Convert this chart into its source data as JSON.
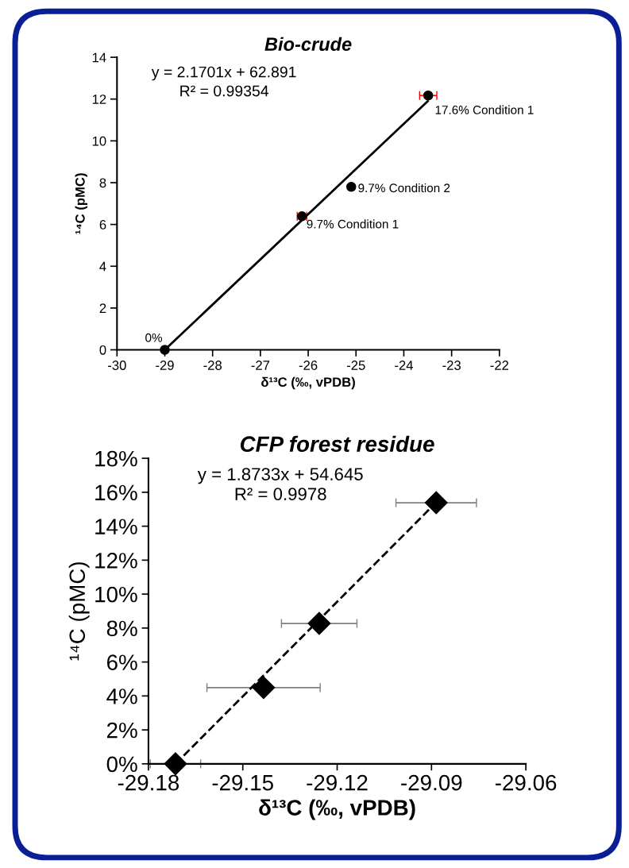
{
  "chart_data": [
    {
      "type": "scatter",
      "title": "Bio-crude",
      "xlabel": "δ¹³C (‰, vPDB)",
      "ylabel": "¹⁴C (pMC)",
      "x": [
        -29.0,
        -26.13,
        -25.1,
        -23.49
      ],
      "series": [
        {
          "color": "#000000",
          "marker": "circle",
          "values": [
            0,
            6.39,
            7.8,
            12.17
          ],
          "xerrors": [
            null,
            0.1,
            null,
            0.18
          ]
        },
        {
          "type": "line",
          "color": "#000000",
          "marker": "none",
          "line_style": "solid",
          "x": [
            -29.0,
            -23.5
          ],
          "values": [
            0,
            11.9
          ]
        }
      ],
      "annotations": [
        "y = 2.1701x + 62.891",
        "R² = 0.99354",
        {
          "text": "0%",
          "x": -29.0,
          "y": 0
        },
        {
          "text": "9.7% Condition 1",
          "x": -26.13,
          "y": 6.39
        },
        {
          "text": "9.7% Condition 2",
          "x": -25.1,
          "y": 7.8
        },
        {
          "text": "17.6% Condition 1",
          "x": -23.49,
          "y": 12.17
        }
      ],
      "xlim": [
        -30,
        -22
      ],
      "xticks": [
        -30,
        -29,
        -28,
        -27,
        -26,
        -25,
        -24,
        -23,
        -22
      ],
      "ylim": [
        0,
        14
      ],
      "yticks": [
        0,
        2,
        4,
        6,
        8,
        10,
        12,
        14
      ],
      "grid": false
    },
    {
      "type": "scatter",
      "title": "CFP forest residue",
      "xlabel": "δ¹³C (‰, vPDB)",
      "ylabel": "¹⁴C (pMC)",
      "x": [
        -29.1714,
        -29.1434,
        -29.1257,
        -29.0885
      ],
      "series": [
        {
          "color": "#000000",
          "marker": "diamond",
          "values": [
            0,
            4.49,
            8.27,
            15.38
          ],
          "xerrors": [
            0.008,
            0.018,
            0.012,
            0.0128
          ]
        },
        {
          "type": "line",
          "color": "#000000",
          "marker": "none",
          "line_style": "dashed",
          "x": [
            -29.1714,
            -29.0885
          ],
          "values": [
            0,
            15.4
          ]
        }
      ],
      "annotations": [
        "y = 1.8733x + 54.645",
        "R² = 0.9978"
      ],
      "xlim": [
        -29.18,
        -29.06
      ],
      "xticks": [
        -29.18,
        -29.15,
        -29.12,
        -29.09,
        -29.06
      ],
      "ylim": [
        0,
        18
      ],
      "yticks": [
        {
          "value": 0,
          "label": "0%"
        },
        {
          "value": 2,
          "label": "2%"
        },
        {
          "value": 4,
          "label": "4%"
        },
        {
          "value": 6,
          "label": "6%"
        },
        {
          "value": 8,
          "label": "8%"
        },
        {
          "value": 10,
          "label": "10%"
        },
        {
          "value": 12,
          "label": "12%"
        },
        {
          "value": 14,
          "label": "14%"
        },
        {
          "value": 16,
          "label": "16%"
        },
        {
          "value": 18,
          "label": "18%"
        }
      ],
      "grid": false
    }
  ]
}
